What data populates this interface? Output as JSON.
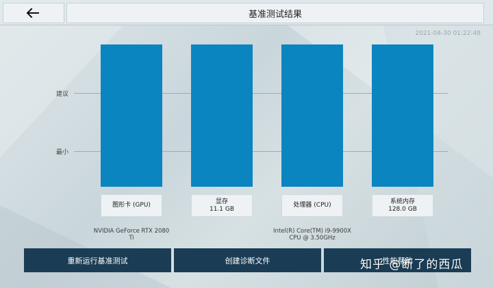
{
  "header": {
    "title": "基准测试结果",
    "back_icon": "back-arrow-icon"
  },
  "timestamp": "2021-04-30 01:22:48",
  "gridlines": [
    {
      "label": "建议"
    },
    {
      "label": "最小"
    }
  ],
  "components": [
    {
      "label_line1": "图形卡 (GPU)",
      "label_line2": "",
      "detail_line1": "NVIDIA GeForce RTX 2080",
      "detail_line2": "Ti"
    },
    {
      "label_line1": "显存",
      "label_line2": "11.1 GB",
      "detail_line1": "",
      "detail_line2": ""
    },
    {
      "label_line1": "处理器 (CPU)",
      "label_line2": "",
      "detail_line1": "Intel(R) Core(TM) i9-9900X",
      "detail_line2": "CPU @ 3.50GHz"
    },
    {
      "label_line1": "系统内存",
      "label_line2": "128.0 GB",
      "detail_line1": "",
      "detail_line2": ""
    }
  ],
  "buttons": {
    "rerun": "重新运行基准测试",
    "diagnostics": "创建诊断文件",
    "help": "性能帮助"
  },
  "watermark": "知乎 @断了的西瓜",
  "colors": {
    "bar": "#0b85c0",
    "button": "#1a3d55"
  }
}
